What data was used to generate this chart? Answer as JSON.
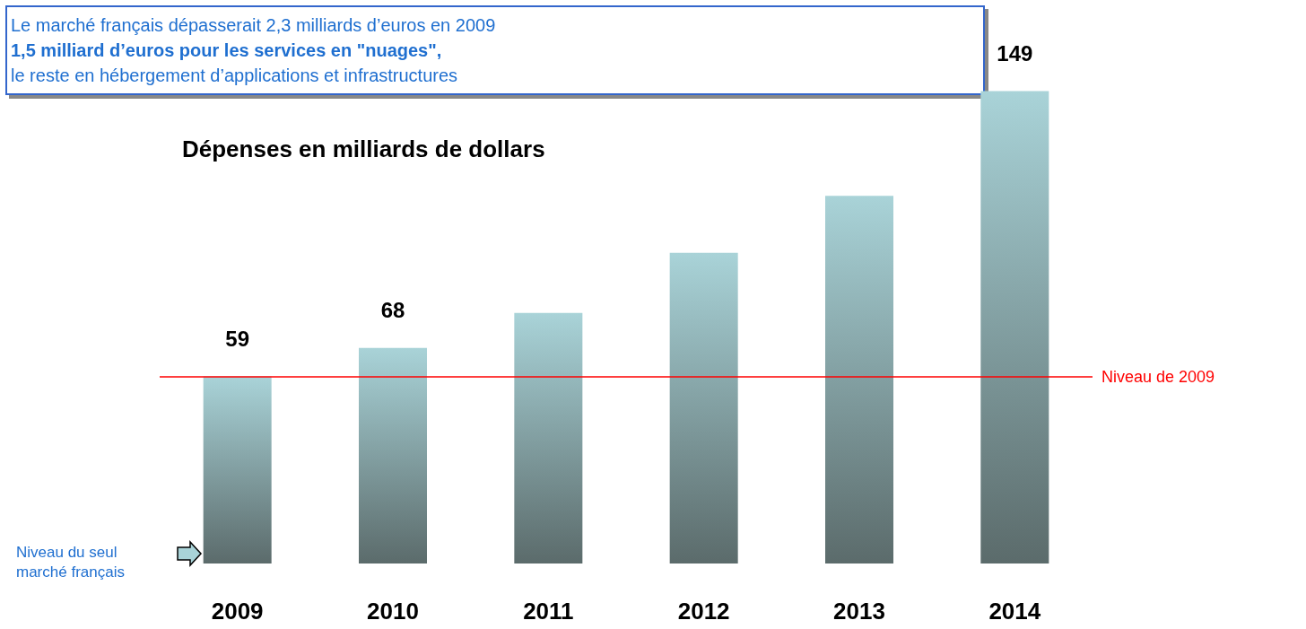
{
  "chart_data": {
    "type": "bar",
    "title": "Dépenses en milliards de dollars",
    "categories": [
      "2009",
      "2010",
      "2011",
      "2012",
      "2013",
      "2014"
    ],
    "values": [
      59,
      68,
      79,
      98,
      116,
      149
    ],
    "value_labels": [
      "59",
      "68",
      null,
      null,
      null,
      "149"
    ],
    "color": "#a9d3d8",
    "ref_lines": [
      {
        "axis": "y",
        "value": 59,
        "label": "Niveau de 2009",
        "color": "#ff0000"
      }
    ],
    "annotations": [
      "Le marché français dépasserait 2,3 milliards d’euros en 2009",
      "1,5 milliard d’euros pour les services en \"nuages\",",
      "le reste en hébergement d’applications et infrastructures",
      "Niveau du seul marché français"
    ],
    "grid": false
  }
}
